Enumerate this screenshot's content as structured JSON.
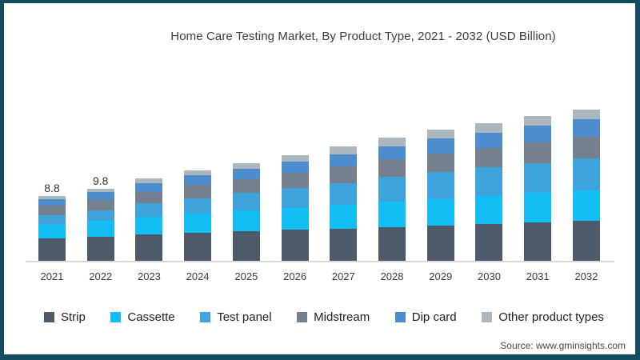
{
  "title": "Home Care Testing Market, By Product Type, 2021 - 2032 (USD Billion)",
  "source": "Source: www.gminsights.com",
  "colors": {
    "frame": "#134b5f",
    "axis_line": "#d8d8d8",
    "strip": "#4d5a69",
    "cassette": "#12bef3",
    "test_panel": "#3ea3db",
    "midstream": "#75808e",
    "dip_card": "#4c8dce",
    "other_product_types": "#acb6bd"
  },
  "chart_data": {
    "type": "bar",
    "stacked": true,
    "title": "Home Care Testing Market, By Product Type, 2021 - 2032 (USD Billion)",
    "xlabel": "",
    "ylabel": "USD Billion",
    "ylim": [
      0,
      21.5
    ],
    "grid": false,
    "legend_position": "bottom",
    "categories": [
      "2021",
      "2022",
      "2023",
      "2024",
      "2025",
      "2026",
      "2027",
      "2028",
      "2029",
      "2030",
      "2031",
      "2032"
    ],
    "totals": [
      8.8,
      9.8,
      11.2,
      12.3,
      13.3,
      14.4,
      15.5,
      16.7,
      17.8,
      18.7,
      19.7,
      20.5
    ],
    "bar_labels": [
      "8.8",
      "9.8",
      "",
      "",
      "",
      "",
      "",
      "",
      "",
      "",
      "",
      ""
    ],
    "series": [
      {
        "name": "Strip",
        "color": "#4d5a69",
        "values": [
          3.0,
          3.3,
          3.6,
          3.8,
          4.0,
          4.2,
          4.4,
          4.6,
          4.8,
          5.0,
          5.2,
          5.4
        ]
      },
      {
        "name": "Cassette",
        "color": "#12bef3",
        "values": [
          1.9,
          2.1,
          2.4,
          2.6,
          2.8,
          3.0,
          3.2,
          3.4,
          3.6,
          3.8,
          4.0,
          4.2
        ]
      },
      {
        "name": "Test panel",
        "color": "#3ea3db",
        "values": [
          1.3,
          1.5,
          1.8,
          2.1,
          2.4,
          2.7,
          3.0,
          3.4,
          3.7,
          3.9,
          4.1,
          4.3
        ]
      },
      {
        "name": "Midstream",
        "color": "#75808e",
        "values": [
          1.3,
          1.4,
          1.6,
          1.8,
          1.9,
          2.1,
          2.2,
          2.4,
          2.5,
          2.6,
          2.8,
          2.9
        ]
      },
      {
        "name": "Dip card",
        "color": "#4c8dce",
        "values": [
          0.9,
          1.0,
          1.2,
          1.3,
          1.4,
          1.5,
          1.7,
          1.8,
          2.0,
          2.1,
          2.3,
          2.4
        ]
      },
      {
        "name": "Other product types",
        "color": "#acb6bd",
        "values": [
          0.4,
          0.5,
          0.6,
          0.7,
          0.8,
          0.9,
          1.0,
          1.1,
          1.2,
          1.3,
          1.3,
          1.3
        ]
      }
    ]
  }
}
